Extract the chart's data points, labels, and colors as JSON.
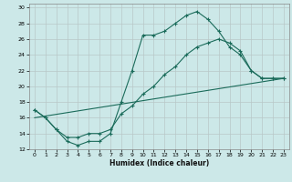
{
  "xlabel": "Humidex (Indice chaleur)",
  "bg_color": "#cce8e8",
  "grid_color": "#b8c8c8",
  "line_color": "#1a6b5a",
  "xlim": [
    -0.5,
    23.5
  ],
  "ylim": [
    12,
    30.5
  ],
  "yticks": [
    12,
    14,
    16,
    18,
    20,
    22,
    24,
    26,
    28,
    30
  ],
  "xticks": [
    0,
    1,
    2,
    3,
    4,
    5,
    6,
    7,
    8,
    9,
    10,
    11,
    12,
    13,
    14,
    15,
    16,
    17,
    18,
    19,
    20,
    21,
    22,
    23
  ],
  "line1_x": [
    0,
    1,
    2,
    3,
    4,
    5,
    6,
    7,
    8,
    9,
    10,
    11,
    12,
    13,
    14,
    15,
    16,
    17,
    18,
    19,
    20,
    21,
    22,
    23
  ],
  "line1_y": [
    17,
    16,
    14.5,
    13,
    12.5,
    13,
    13,
    14,
    18,
    22,
    26.5,
    26.5,
    27,
    28,
    29,
    29.5,
    28.5,
    27,
    25,
    24,
    22,
    21,
    21,
    21
  ],
  "line2_x": [
    0,
    1,
    2,
    3,
    4,
    5,
    6,
    7,
    8,
    9,
    10,
    11,
    12,
    13,
    14,
    15,
    16,
    17,
    18,
    19,
    20,
    21,
    22,
    23
  ],
  "line2_y": [
    17,
    16,
    14.5,
    13.5,
    13.5,
    14,
    14,
    14.5,
    16.5,
    17.5,
    19,
    20,
    21.5,
    22.5,
    24,
    25,
    25.5,
    26,
    25.5,
    24.5,
    22,
    21,
    21,
    21
  ],
  "line3_x": [
    0,
    23
  ],
  "line3_y": [
    16,
    21
  ],
  "xlabel_fontsize": 5.5,
  "tick_fontsize": 4.5
}
